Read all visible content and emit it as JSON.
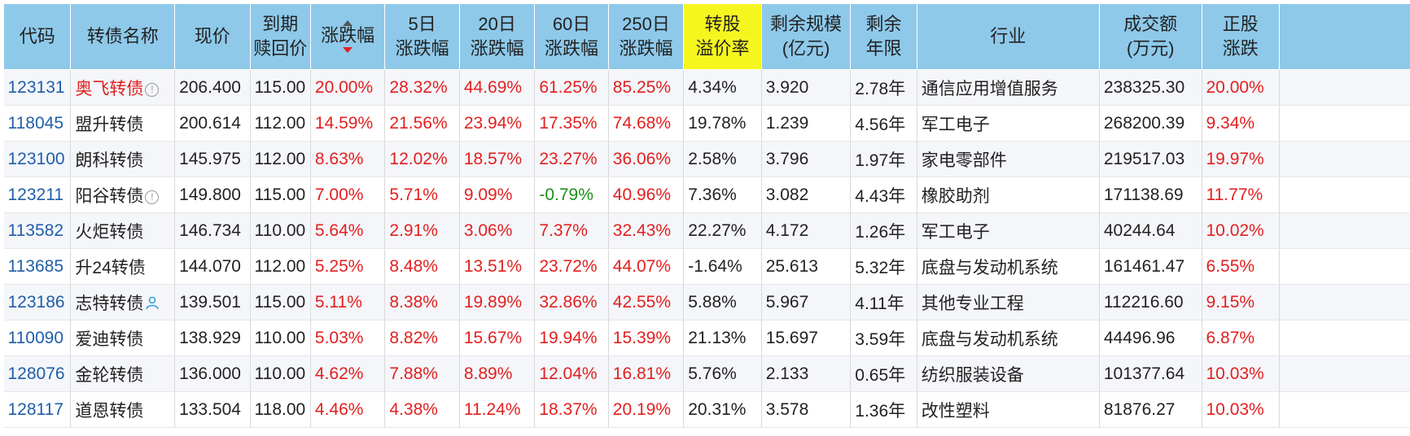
{
  "headers": [
    {
      "label": "代码",
      "highlight": false
    },
    {
      "label": "转债名称",
      "highlight": false
    },
    {
      "label": "现价",
      "highlight": false
    },
    {
      "label": "到期\n赎回价",
      "highlight": false
    },
    {
      "label": "涨跌幅",
      "highlight": false,
      "sorted": "desc"
    },
    {
      "label": "5日\n涨跌幅",
      "highlight": false
    },
    {
      "label": "20日\n涨跌幅",
      "highlight": false
    },
    {
      "label": "60日\n涨跌幅",
      "highlight": false
    },
    {
      "label": "250日\n涨跌幅",
      "highlight": false
    },
    {
      "label": "转股\n溢价率",
      "highlight": true
    },
    {
      "label": "剩余规模\n(亿元)",
      "highlight": false
    },
    {
      "label": "剩余\n年限",
      "highlight": false
    },
    {
      "label": "行业",
      "highlight": false
    },
    {
      "label": "成交额\n(万元)",
      "highlight": false
    },
    {
      "label": "正股\n涨跌",
      "highlight": false
    }
  ],
  "rows": [
    {
      "code": "123131",
      "name": "奥飞转债",
      "name_red": true,
      "badge": "warn-icon",
      "price": "206.400",
      "redeem": "115.00",
      "chg": "20.00%",
      "chg5": "28.32%",
      "chg20": "44.69%",
      "chg60": "61.25%",
      "chg250": "85.25%",
      "premium": "4.34%",
      "scale": "3.920",
      "years": "2.78年",
      "industry": "通信应用增值服务",
      "turnover": "238325.30",
      "stock_chg": "20.00%"
    },
    {
      "code": "118045",
      "name": "盟升转债",
      "name_red": false,
      "badge": "",
      "price": "200.614",
      "redeem": "112.00",
      "chg": "14.59%",
      "chg5": "21.56%",
      "chg20": "23.94%",
      "chg60": "17.35%",
      "chg250": "74.68%",
      "premium": "19.78%",
      "scale": "1.239",
      "years": "4.56年",
      "industry": "军工电子",
      "turnover": "268200.39",
      "stock_chg": "9.34%"
    },
    {
      "code": "123100",
      "name": "朗科转债",
      "name_red": false,
      "badge": "",
      "price": "145.975",
      "redeem": "112.00",
      "chg": "8.63%",
      "chg5": "12.02%",
      "chg20": "18.57%",
      "chg60": "23.27%",
      "chg250": "36.06%",
      "premium": "2.58%",
      "scale": "3.796",
      "years": "1.97年",
      "industry": "家电零部件",
      "turnover": "219517.03",
      "stock_chg": "19.97%"
    },
    {
      "code": "123211",
      "name": "阳谷转债",
      "name_red": false,
      "badge": "warn-icon",
      "price": "149.800",
      "redeem": "115.00",
      "chg": "7.00%",
      "chg5": "5.71%",
      "chg20": "9.09%",
      "chg60": "-0.79%",
      "chg250": "40.96%",
      "premium": "7.36%",
      "scale": "3.082",
      "years": "4.43年",
      "industry": "橡胶助剂",
      "turnover": "171138.69",
      "stock_chg": "11.77%"
    },
    {
      "code": "113582",
      "name": "火炬转债",
      "name_red": false,
      "badge": "",
      "price": "146.734",
      "redeem": "110.00",
      "chg": "5.64%",
      "chg5": "2.91%",
      "chg20": "3.06%",
      "chg60": "7.37%",
      "chg250": "32.43%",
      "premium": "22.27%",
      "scale": "4.172",
      "years": "1.26年",
      "industry": "军工电子",
      "turnover": "40244.64",
      "stock_chg": "10.02%"
    },
    {
      "code": "113685",
      "name": "升24转债",
      "name_red": false,
      "badge": "",
      "price": "144.070",
      "redeem": "112.00",
      "chg": "5.25%",
      "chg5": "8.48%",
      "chg20": "13.51%",
      "chg60": "23.72%",
      "chg250": "44.07%",
      "premium": "-1.64%",
      "scale": "25.613",
      "years": "5.32年",
      "industry": "底盘与发动机系统",
      "turnover": "161461.47",
      "stock_chg": "6.55%"
    },
    {
      "code": "123186",
      "name": "志特转债",
      "name_red": false,
      "badge": "user-icon",
      "price": "139.501",
      "redeem": "115.00",
      "chg": "5.11%",
      "chg5": "8.38%",
      "chg20": "19.89%",
      "chg60": "32.86%",
      "chg250": "42.55%",
      "premium": "5.88%",
      "scale": "5.967",
      "years": "4.11年",
      "industry": "其他专业工程",
      "turnover": "112216.60",
      "stock_chg": "9.15%"
    },
    {
      "code": "110090",
      "name": "爱迪转债",
      "name_red": false,
      "badge": "",
      "price": "138.929",
      "redeem": "110.00",
      "chg": "5.03%",
      "chg5": "8.82%",
      "chg20": "15.67%",
      "chg60": "19.94%",
      "chg250": "15.39%",
      "premium": "21.13%",
      "scale": "15.697",
      "years": "3.59年",
      "industry": "底盘与发动机系统",
      "turnover": "44496.96",
      "stock_chg": "6.87%"
    },
    {
      "code": "128076",
      "name": "金轮转债",
      "name_red": false,
      "badge": "",
      "price": "136.000",
      "redeem": "110.00",
      "chg": "4.62%",
      "chg5": "7.88%",
      "chg20": "8.89%",
      "chg60": "12.04%",
      "chg250": "16.81%",
      "premium": "5.76%",
      "scale": "2.133",
      "years": "0.65年",
      "industry": "纺织服装设备",
      "turnover": "101377.64",
      "stock_chg": "10.03%"
    },
    {
      "code": "128117",
      "name": "道恩转债",
      "name_red": false,
      "badge": "",
      "price": "133.504",
      "redeem": "118.00",
      "chg": "4.46%",
      "chg5": "4.38%",
      "chg20": "11.24%",
      "chg60": "18.37%",
      "chg250": "20.19%",
      "premium": "20.31%",
      "scale": "3.578",
      "years": "1.36年",
      "industry": "改性塑料",
      "turnover": "81876.27",
      "stock_chg": "10.03%"
    }
  ],
  "colors": {
    "header_bg": "#8ec9ea",
    "header_highlight": "#f6f61f",
    "up": "#e31f1f",
    "down": "#1a8f1a",
    "code": "#1f5ea8"
  }
}
